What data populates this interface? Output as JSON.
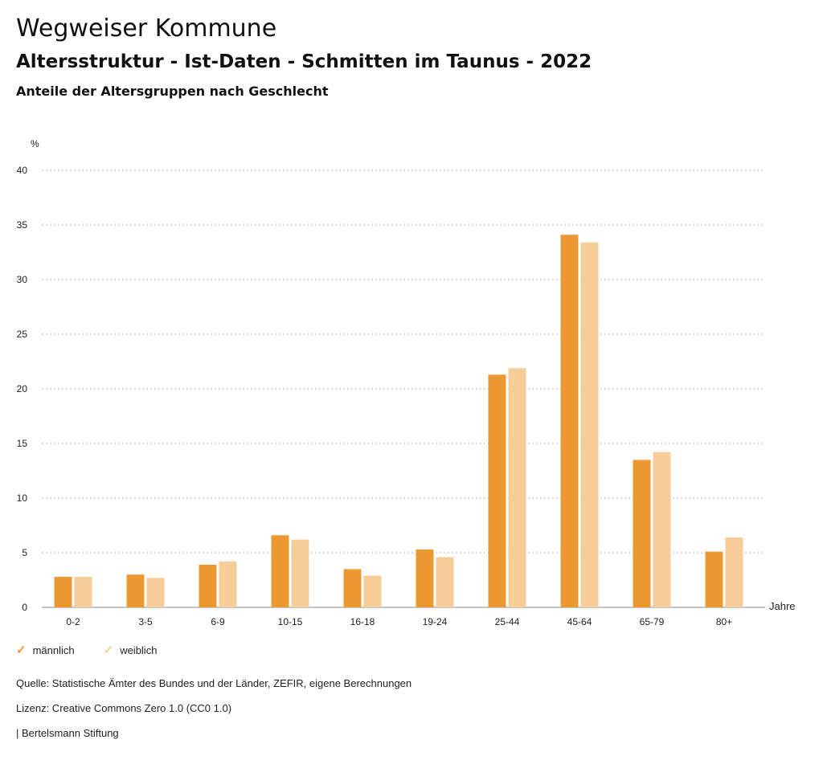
{
  "header": {
    "title": "Wegweiser Kommune",
    "subtitle": "Altersstruktur - Ist-Daten - Schmitten im Taunus - 2022",
    "description": "Anteile der Altersgruppen nach Geschlecht"
  },
  "chart_data": {
    "type": "bar",
    "ylabel": "%",
    "xlabel": "Jahre",
    "ylim": [
      0,
      40
    ],
    "yticks": [
      0,
      5,
      10,
      15,
      20,
      25,
      30,
      35,
      40
    ],
    "grid": true,
    "categories": [
      "0-2",
      "3-5",
      "6-9",
      "10-15",
      "16-18",
      "19-24",
      "25-44",
      "45-64",
      "65-79",
      "80+"
    ],
    "series": [
      {
        "name": "männlich",
        "color": "#ec9934",
        "values": [
          2.8,
          3.0,
          3.9,
          6.6,
          3.5,
          5.3,
          21.3,
          34.1,
          13.5,
          5.1
        ]
      },
      {
        "name": "weiblich",
        "color": "#f5cd99",
        "values": [
          2.8,
          2.7,
          4.2,
          6.2,
          2.9,
          4.6,
          21.9,
          33.4,
          14.2,
          6.4
        ]
      }
    ],
    "legend_position": "bottom-left"
  },
  "footer": {
    "source": "Quelle: Statistische Ämter des Bundes und der Länder, ZEFIR, eigene Berechnungen",
    "license": "Lizenz: Creative Commons Zero 1.0 (CC0 1.0)",
    "publisher": "| Bertelsmann Stiftung"
  }
}
